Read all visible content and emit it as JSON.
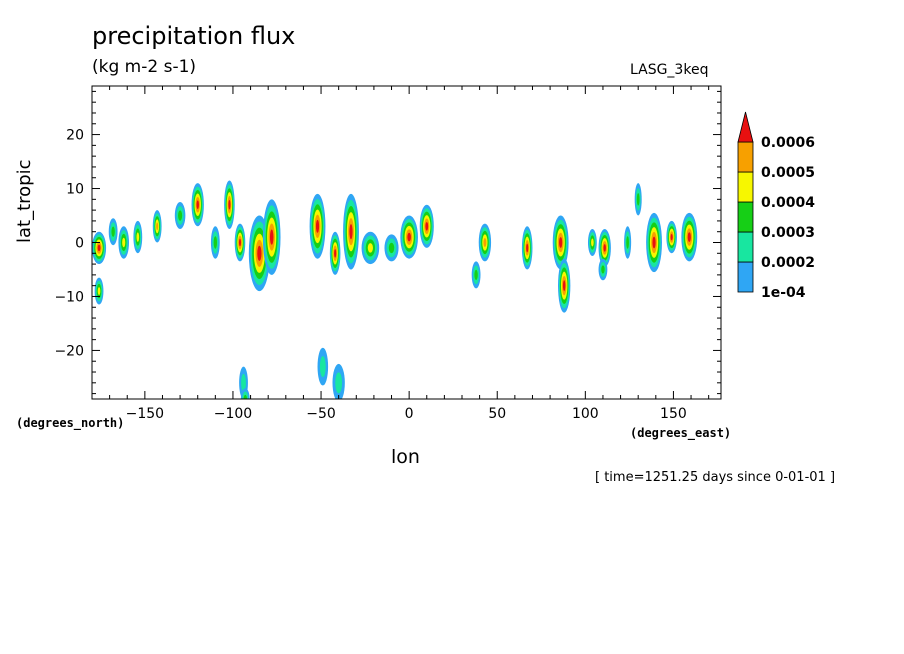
{
  "chart_data": {
    "type": "heatmap",
    "title": "precipitation flux",
    "units": "(kg m-2 s-1)",
    "dataset": "LASG_3keq",
    "xlabel": "lon",
    "ylabel": "lat_tropic",
    "x_units": "(degrees_east)",
    "y_units": "(degrees_north)",
    "timestamp": "[ time=1251.25 days since 0-01-01 ]",
    "xlim": [
      -180,
      177
    ],
    "ylim": [
      -29,
      29
    ],
    "x_ticks": [
      -150,
      -100,
      -50,
      0,
      50,
      100,
      150
    ],
    "y_ticks": [
      -20,
      -10,
      0,
      10,
      20
    ],
    "colorbar": {
      "levels": [
        "1e-04",
        "0.0002",
        "0.0003",
        "0.0004",
        "0.0005",
        "0.0006"
      ],
      "colors": [
        "#2fa6f4",
        "#18e6a0",
        "#16cf16",
        "#f7f700",
        "#f7a000",
        "#e81010"
      ]
    },
    "cells": [
      {
        "lon": -176,
        "lat": -1,
        "w": 8,
        "h": 6,
        "level": 5
      },
      {
        "lon": -176,
        "lat": -9,
        "w": 5,
        "h": 5,
        "level": 3
      },
      {
        "lon": -168,
        "lat": 2,
        "w": 5,
        "h": 5,
        "level": 2
      },
      {
        "lon": -162,
        "lat": 0,
        "w": 6,
        "h": 6,
        "level": 3
      },
      {
        "lon": -154,
        "lat": 1,
        "w": 5,
        "h": 6,
        "level": 3
      },
      {
        "lon": -143,
        "lat": 3,
        "w": 5,
        "h": 6,
        "level": 4
      },
      {
        "lon": -130,
        "lat": 5,
        "w": 6,
        "h": 5,
        "level": 2
      },
      {
        "lon": -120,
        "lat": 7,
        "w": 7,
        "h": 8,
        "level": 5
      },
      {
        "lon": -110,
        "lat": 0,
        "w": 5,
        "h": 6,
        "level": 2
      },
      {
        "lon": -102,
        "lat": 7,
        "w": 6,
        "h": 9,
        "level": 5
      },
      {
        "lon": -96,
        "lat": 0,
        "w": 6,
        "h": 7,
        "level": 5
      },
      {
        "lon": -85,
        "lat": -2,
        "w": 12,
        "h": 14,
        "level": 5
      },
      {
        "lon": -78,
        "lat": 1,
        "w": 10,
        "h": 14,
        "level": 5
      },
      {
        "lon": -52,
        "lat": 3,
        "w": 9,
        "h": 12,
        "level": 5
      },
      {
        "lon": -42,
        "lat": -2,
        "w": 6,
        "h": 8,
        "level": 5
      },
      {
        "lon": -33,
        "lat": 2,
        "w": 9,
        "h": 14,
        "level": 5
      },
      {
        "lon": -22,
        "lat": -1,
        "w": 10,
        "h": 6,
        "level": 3
      },
      {
        "lon": -10,
        "lat": -1,
        "w": 8,
        "h": 5,
        "level": 2
      },
      {
        "lon": 0,
        "lat": 1,
        "w": 10,
        "h": 8,
        "level": 5
      },
      {
        "lon": 10,
        "lat": 3,
        "w": 8,
        "h": 8,
        "level": 5
      },
      {
        "lon": 43,
        "lat": 0,
        "w": 7,
        "h": 7,
        "level": 4
      },
      {
        "lon": 38,
        "lat": -6,
        "w": 5,
        "h": 5,
        "level": 2
      },
      {
        "lon": 67,
        "lat": -1,
        "w": 6,
        "h": 8,
        "level": 5
      },
      {
        "lon": 86,
        "lat": 0,
        "w": 9,
        "h": 10,
        "level": 5
      },
      {
        "lon": 88,
        "lat": -8,
        "w": 7,
        "h": 10,
        "level": 5
      },
      {
        "lon": 104,
        "lat": 0,
        "w": 5,
        "h": 5,
        "level": 3
      },
      {
        "lon": 111,
        "lat": -1,
        "w": 7,
        "h": 7,
        "level": 5
      },
      {
        "lon": 110,
        "lat": -5,
        "w": 5,
        "h": 4,
        "level": 2
      },
      {
        "lon": 124,
        "lat": 0,
        "w": 4,
        "h": 6,
        "level": 2
      },
      {
        "lon": 139,
        "lat": 0,
        "w": 9,
        "h": 11,
        "level": 5
      },
      {
        "lon": 130,
        "lat": 8,
        "w": 4,
        "h": 6,
        "level": 2
      },
      {
        "lon": 149,
        "lat": 1,
        "w": 6,
        "h": 6,
        "level": 5
      },
      {
        "lon": 159,
        "lat": 1,
        "w": 9,
        "h": 9,
        "level": 5
      },
      {
        "lon": -49,
        "lat": -23,
        "w": 6,
        "h": 7,
        "level": 1
      },
      {
        "lon": -40,
        "lat": -26,
        "w": 7,
        "h": 7,
        "level": 1
      },
      {
        "lon": -94,
        "lat": -26,
        "w": 5,
        "h": 6,
        "level": 1
      },
      {
        "lon": -93,
        "lat": -29,
        "w": 5,
        "h": 4,
        "level": 2
      }
    ]
  }
}
